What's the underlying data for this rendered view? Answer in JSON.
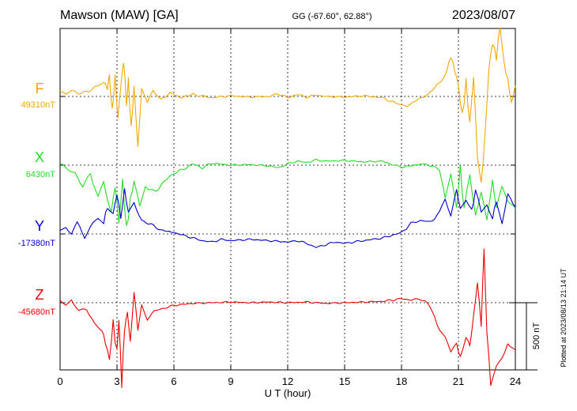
{
  "header": {
    "station": "Mawson (MAW)  [GA]",
    "coords": "GG (-67.60°,  62.88°)",
    "date": "2023/08/07"
  },
  "side_note": "Plotted at 2023/08/13 21:14 UT",
  "chart_data": {
    "type": "line",
    "xlabel": "U T (hour)",
    "xlim": [
      0,
      24
    ],
    "x_ticks": [
      "0",
      "3",
      "6",
      "9",
      "12",
      "15",
      "18",
      "21",
      "24"
    ],
    "grid": "dotted vertical every 3 hours; dotted baseline per component",
    "scale_bar": {
      "label": "500 nT",
      "value_nT": 500
    },
    "series": [
      {
        "name": "F",
        "baseline": "49310nT",
        "color": "#f5a800",
        "points": [
          [
            0,
            40
          ],
          [
            0.3,
            20
          ],
          [
            0.6,
            50
          ],
          [
            1,
            20
          ],
          [
            1.5,
            40
          ],
          [
            2,
            80
          ],
          [
            2.3,
            110
          ],
          [
            2.5,
            60
          ],
          [
            2.6,
            150
          ],
          [
            2.75,
            -120
          ],
          [
            2.9,
            130
          ],
          [
            3.05,
            -160
          ],
          [
            3.2,
            90
          ],
          [
            3.35,
            280
          ],
          [
            3.5,
            -60
          ],
          [
            3.6,
            120
          ],
          [
            3.75,
            -220
          ],
          [
            3.9,
            80
          ],
          [
            4.1,
            -380
          ],
          [
            4.3,
            60
          ],
          [
            4.6,
            -60
          ],
          [
            4.9,
            50
          ],
          [
            5.3,
            -30
          ],
          [
            5.8,
            30
          ],
          [
            6.3,
            -10
          ],
          [
            7,
            15
          ],
          [
            8,
            -10
          ],
          [
            9,
            5
          ],
          [
            10,
            -5
          ],
          [
            11,
            0
          ],
          [
            11.5,
            20
          ],
          [
            12,
            -10
          ],
          [
            12.5,
            15
          ],
          [
            13,
            -5
          ],
          [
            13.5,
            10
          ],
          [
            14,
            0
          ],
          [
            15,
            -5
          ],
          [
            16,
            5
          ],
          [
            17,
            -10
          ],
          [
            17.5,
            -40
          ],
          [
            18,
            -60
          ],
          [
            18.3,
            -80
          ],
          [
            18.6,
            -40
          ],
          [
            19,
            -20
          ],
          [
            19.5,
            30
          ],
          [
            20,
            100
          ],
          [
            20.4,
            200
          ],
          [
            20.6,
            300
          ],
          [
            20.8,
            200
          ],
          [
            21,
            80
          ],
          [
            21.2,
            -150
          ],
          [
            21.4,
            100
          ],
          [
            21.6,
            -200
          ],
          [
            21.8,
            150
          ],
          [
            22,
            -450
          ],
          [
            22.2,
            -650
          ],
          [
            22.4,
            -300
          ],
          [
            22.6,
            200
          ],
          [
            22.8,
            400
          ],
          [
            23,
            300
          ],
          [
            23.2,
            520
          ],
          [
            23.4,
            250
          ],
          [
            23.6,
            120
          ],
          [
            23.8,
            -50
          ],
          [
            24,
            80
          ]
        ]
      },
      {
        "name": "X",
        "baseline": "6430nT",
        "color": "#22dd22",
        "points": [
          [
            0,
            10
          ],
          [
            0.4,
            -30
          ],
          [
            0.8,
            -60
          ],
          [
            1.2,
            -150
          ],
          [
            1.6,
            -60
          ],
          [
            2,
            -250
          ],
          [
            2.3,
            -120
          ],
          [
            2.5,
            -260
          ],
          [
            2.7,
            -350
          ],
          [
            2.9,
            -150
          ],
          [
            3.1,
            -420
          ],
          [
            3.3,
            -120
          ],
          [
            3.5,
            -480
          ],
          [
            3.7,
            -260
          ],
          [
            3.9,
            -120
          ],
          [
            4.2,
            -320
          ],
          [
            4.5,
            -160
          ],
          [
            5,
            -200
          ],
          [
            5.5,
            -120
          ],
          [
            6,
            -60
          ],
          [
            6.5,
            -30
          ],
          [
            7,
            10
          ],
          [
            7.5,
            -20
          ],
          [
            8,
            15
          ],
          [
            9,
            0
          ],
          [
            10,
            5
          ],
          [
            11,
            -5
          ],
          [
            11.5,
            -20
          ],
          [
            12,
            10
          ],
          [
            12.5,
            30
          ],
          [
            13,
            20
          ],
          [
            13.5,
            40
          ],
          [
            14,
            30
          ],
          [
            15,
            35
          ],
          [
            16,
            25
          ],
          [
            17,
            30
          ],
          [
            17.5,
            5
          ],
          [
            18,
            -15
          ],
          [
            18.5,
            -5
          ],
          [
            19,
            10
          ],
          [
            19.5,
            0
          ],
          [
            20,
            -30
          ],
          [
            20.3,
            -260
          ],
          [
            20.6,
            -70
          ],
          [
            20.9,
            -320
          ],
          [
            21.1,
            -20
          ],
          [
            21.3,
            -340
          ],
          [
            21.6,
            -90
          ],
          [
            21.9,
            -350
          ],
          [
            22.2,
            -200
          ],
          [
            22.5,
            -420
          ],
          [
            22.8,
            -120
          ],
          [
            23,
            -320
          ],
          [
            23.3,
            -170
          ],
          [
            23.6,
            -260
          ],
          [
            24,
            -320
          ]
        ]
      },
      {
        "name": "Y",
        "baseline": "-17380nT",
        "color": "#0000cc",
        "points": [
          [
            0,
            20
          ],
          [
            0.3,
            60
          ],
          [
            0.6,
            0
          ],
          [
            0.9,
            80
          ],
          [
            1.3,
            -30
          ],
          [
            1.6,
            60
          ],
          [
            2,
            120
          ],
          [
            2.3,
            90
          ],
          [
            2.5,
            200
          ],
          [
            2.8,
            150
          ],
          [
            3.0,
            300
          ],
          [
            3.2,
            120
          ],
          [
            3.4,
            330
          ],
          [
            3.6,
            160
          ],
          [
            3.9,
            220
          ],
          [
            4.3,
            100
          ],
          [
            4.8,
            70
          ],
          [
            5.3,
            30
          ],
          [
            6,
            10
          ],
          [
            6.5,
            -10
          ],
          [
            7,
            -30
          ],
          [
            7.5,
            -50
          ],
          [
            8,
            -60
          ],
          [
            8.5,
            -40
          ],
          [
            9,
            -50
          ],
          [
            10,
            -40
          ],
          [
            11,
            -50
          ],
          [
            12,
            -60
          ],
          [
            12.5,
            -50
          ],
          [
            13,
            -70
          ],
          [
            13.5,
            -100
          ],
          [
            14,
            -80
          ],
          [
            14.5,
            -60
          ],
          [
            15,
            -70
          ],
          [
            16,
            -50
          ],
          [
            17,
            -30
          ],
          [
            17.5,
            -10
          ],
          [
            18,
            10
          ],
          [
            18.5,
            80
          ],
          [
            19,
            100
          ],
          [
            19.5,
            90
          ],
          [
            20,
            150
          ],
          [
            20.3,
            270
          ],
          [
            20.6,
            150
          ],
          [
            20.9,
            320
          ],
          [
            21.1,
            190
          ],
          [
            21.4,
            250
          ],
          [
            21.7,
            170
          ],
          [
            21.9,
            320
          ],
          [
            22.2,
            150
          ],
          [
            22.5,
            230
          ],
          [
            22.8,
            120
          ],
          [
            23,
            250
          ],
          [
            23.3,
            80
          ],
          [
            23.6,
            300
          ],
          [
            24,
            200
          ]
        ]
      },
      {
        "name": "Z",
        "baseline": "-45680nT",
        "color": "#ee0000",
        "points": [
          [
            0,
            20
          ],
          [
            0.3,
            -20
          ],
          [
            0.6,
            10
          ],
          [
            1,
            -60
          ],
          [
            1.4,
            -40
          ],
          [
            1.8,
            -150
          ],
          [
            2.2,
            -200
          ],
          [
            2.4,
            -300
          ],
          [
            2.6,
            -420
          ],
          [
            2.8,
            -150
          ],
          [
            3.0,
            -380
          ],
          [
            3.1,
            -100
          ],
          [
            3.25,
            -600
          ],
          [
            3.4,
            -200
          ],
          [
            3.55,
            -80
          ],
          [
            3.7,
            -300
          ],
          [
            3.9,
            80
          ],
          [
            4.1,
            -200
          ],
          [
            4.3,
            -20
          ],
          [
            4.6,
            -120
          ],
          [
            5,
            -60
          ],
          [
            5.5,
            -40
          ],
          [
            6,
            -20
          ],
          [
            7,
            -5
          ],
          [
            8,
            0
          ],
          [
            9,
            5
          ],
          [
            10,
            0
          ],
          [
            11,
            5
          ],
          [
            12,
            0
          ],
          [
            13,
            5
          ],
          [
            14,
            -5
          ],
          [
            15,
            0
          ],
          [
            16,
            5
          ],
          [
            17,
            10
          ],
          [
            18,
            30
          ],
          [
            18.5,
            20
          ],
          [
            19,
            30
          ],
          [
            19.5,
            -20
          ],
          [
            20,
            -200
          ],
          [
            20.3,
            -250
          ],
          [
            20.6,
            -380
          ],
          [
            20.9,
            -300
          ],
          [
            21.1,
            -420
          ],
          [
            21.4,
            -250
          ],
          [
            21.6,
            -320
          ],
          [
            21.8,
            -100
          ],
          [
            22,
            150
          ],
          [
            22.2,
            -160
          ],
          [
            22.35,
            420
          ],
          [
            22.5,
            -220
          ],
          [
            22.7,
            -600
          ],
          [
            23,
            -480
          ],
          [
            23.3,
            -420
          ],
          [
            23.6,
            -300
          ],
          [
            24,
            -350
          ]
        ]
      }
    ]
  }
}
